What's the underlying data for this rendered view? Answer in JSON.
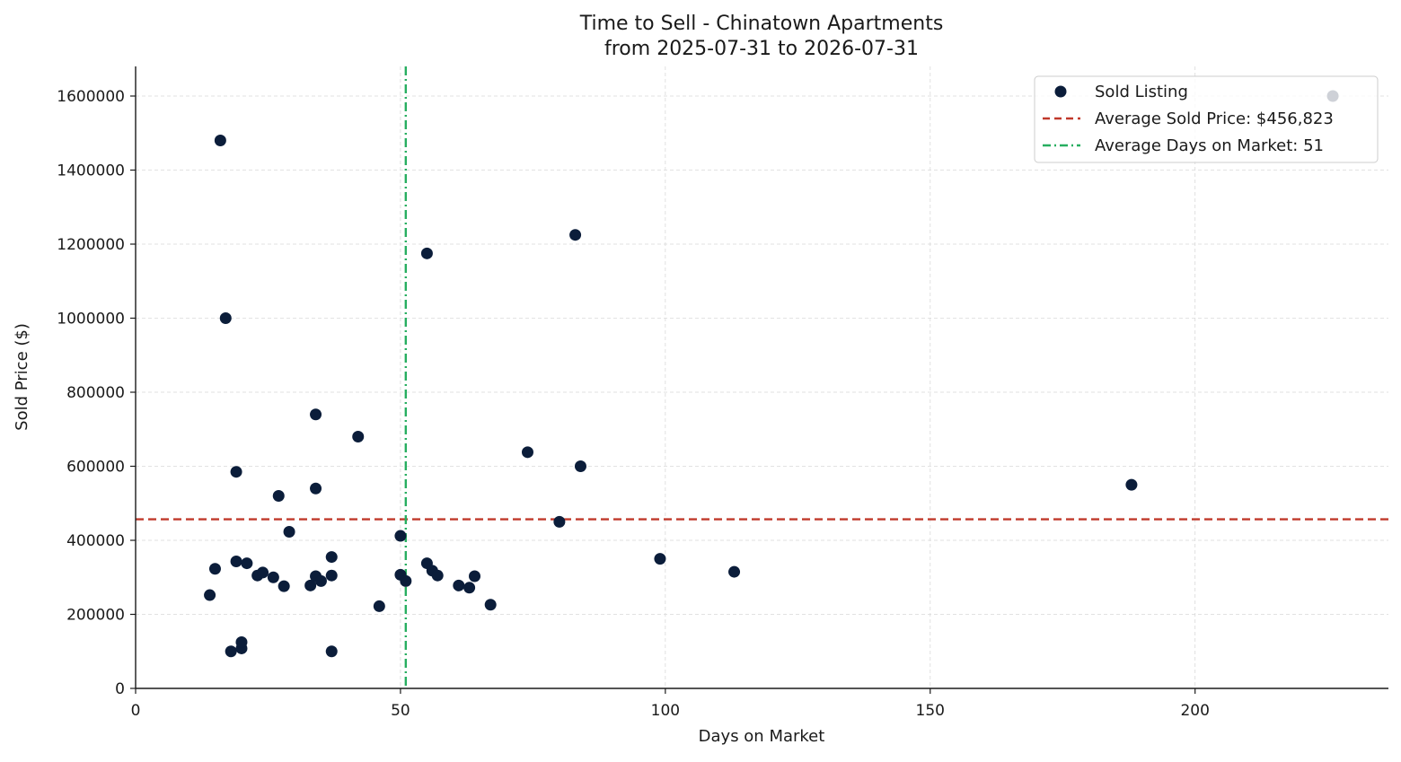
{
  "chart_data": {
    "type": "scatter",
    "title": "Time to Sell - Chinatown Apartments",
    "subtitle": "from 2025-07-31 to 2026-07-31",
    "xlabel": "Days on Market",
    "ylabel": "Sold Price ($)",
    "xlim": [
      0,
      236.5
    ],
    "ylim": [
      0,
      1680000
    ],
    "xticks": [
      0,
      50,
      100,
      150,
      200
    ],
    "yticks": [
      0,
      200000,
      400000,
      600000,
      800000,
      1000000,
      1200000,
      1400000,
      1600000
    ],
    "grid": true,
    "legend_position": "top-right",
    "colors": {
      "points": "#0b1d3a",
      "avg_price_line": "#c0392b",
      "avg_days_line": "#27ae60",
      "grid": "#d9d9d9",
      "axis": "#1a1a1a"
    },
    "legend": [
      {
        "label": "Sold Listing",
        "kind": "marker"
      },
      {
        "label": "Average Sold Price: $456,823",
        "kind": "dashed"
      },
      {
        "label": "Average Days on Market: 51",
        "kind": "dashdot"
      }
    ],
    "avg_price": 456823,
    "avg_days": 51,
    "series": [
      {
        "name": "Sold Listing",
        "points": [
          [
            16,
            1480000
          ],
          [
            17,
            1000000
          ],
          [
            14,
            252000
          ],
          [
            15,
            323000
          ],
          [
            18,
            100000
          ],
          [
            19,
            585000
          ],
          [
            19,
            343000
          ],
          [
            20,
            108000
          ],
          [
            20,
            125000
          ],
          [
            21,
            338000
          ],
          [
            23,
            305000
          ],
          [
            24,
            313000
          ],
          [
            26,
            300000
          ],
          [
            27,
            520000
          ],
          [
            28,
            276000
          ],
          [
            29,
            423000
          ],
          [
            33,
            278000
          ],
          [
            34,
            740000
          ],
          [
            34,
            540000
          ],
          [
            34,
            303000
          ],
          [
            35,
            290000
          ],
          [
            37,
            355000
          ],
          [
            37,
            305000
          ],
          [
            37,
            100000
          ],
          [
            42,
            680000
          ],
          [
            46,
            222000
          ],
          [
            50,
            412000
          ],
          [
            50,
            307000
          ],
          [
            51,
            290000
          ],
          [
            55,
            1175000
          ],
          [
            55,
            338000
          ],
          [
            56,
            318000
          ],
          [
            57,
            305000
          ],
          [
            61,
            278000
          ],
          [
            63,
            272000
          ],
          [
            64,
            303000
          ],
          [
            67,
            226000
          ],
          [
            74,
            638000
          ],
          [
            80,
            450000
          ],
          [
            83,
            1225000
          ],
          [
            84,
            600000
          ],
          [
            99,
            350000
          ],
          [
            113,
            315000
          ],
          [
            188,
            550000
          ],
          [
            226,
            1600000
          ]
        ]
      }
    ]
  }
}
